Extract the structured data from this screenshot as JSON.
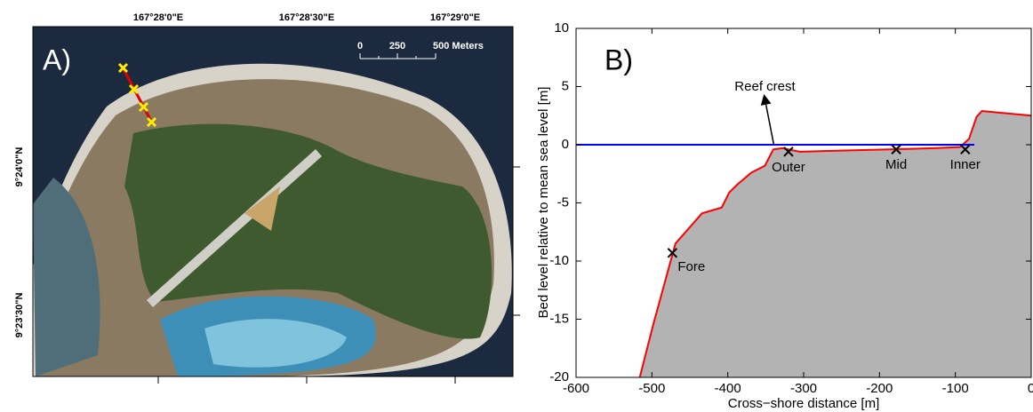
{
  "map": {
    "panel_label": "A)",
    "lon_labels": [
      "167°28'0\"E",
      "167°28'30\"E",
      "167°29'0\"E"
    ],
    "lat_labels": [
      "9°24'0\"N",
      "9°23'30\"N"
    ],
    "scale_labels": [
      "0",
      "250",
      "500 Meters"
    ]
  },
  "chart_data": {
    "type": "area",
    "panel_label": "B)",
    "x_label": "Cross−shore distance [m]",
    "y_label": "Bed level relative to mean sea level [m]",
    "xlim": [
      -600,
      0
    ],
    "ylim": [
      -20,
      10
    ],
    "xticks": [
      -600,
      -500,
      -400,
      -300,
      -200,
      -100,
      0
    ],
    "yticks": [
      -20,
      -15,
      -10,
      -5,
      0,
      5,
      10
    ],
    "series": [
      {
        "color": "#ff0000",
        "fill": "#b3b3b3",
        "x": [
          -516,
          -498,
          -469,
          -434,
          -408,
          -398,
          -387,
          -369,
          -351,
          -340,
          -328,
          -305,
          -246,
          -187,
          -129,
          -94,
          -82,
          -72,
          -65,
          0
        ],
        "values": [
          -20,
          -15.4,
          -8.5,
          -5.9,
          -5.4,
          -4.1,
          -3.4,
          -2.4,
          -1.8,
          -0.4,
          -0.3,
          -0.6,
          -0.5,
          -0.4,
          -0.3,
          -0.2,
          0.5,
          2.4,
          2.9,
          2.5
        ]
      },
      {
        "color": "#0000ff",
        "x": [
          -600,
          -75
        ],
        "values": [
          0,
          0
        ]
      }
    ],
    "points": [
      {
        "label": "Fore",
        "x": -473,
        "y": -9.3
      },
      {
        "label": "Outer",
        "x": -320,
        "y": -0.6
      },
      {
        "label": "Mid",
        "x": -178,
        "y": -0.4
      },
      {
        "label": "Inner",
        "x": -87,
        "y": -0.4
      }
    ],
    "annotation": {
      "text": "Reef crest",
      "x": -351,
      "y": 3.9,
      "arrow_x": -337,
      "arrow_y": -0.3
    }
  }
}
